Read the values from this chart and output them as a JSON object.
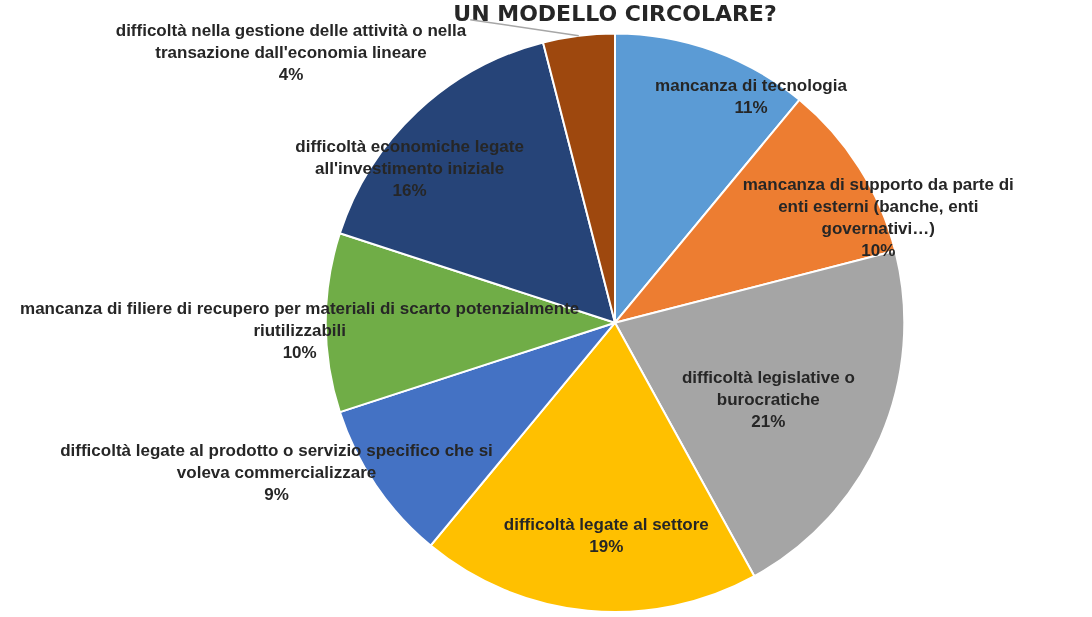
{
  "chart_data": {
    "type": "pie",
    "title": "UN MODELLO CIRCOLARE?",
    "categories": [
      "mancanza di tecnologia",
      "mancanza di supporto da parte di enti esterni (banche, enti governativi…)",
      "difficoltà legislative o burocratiche",
      "difficoltà legate al settore",
      "difficoltà legate al prodotto o servizio specifico che si voleva commercializzare",
      "mancanza di filiere di recupero per materiali di scarto potenzialmente riutilizzabili",
      "difficoltà economiche legate all'investimento iniziale",
      "difficoltà nella gestione delle attività o nella transazione dall'economia lineare"
    ],
    "values": [
      11,
      10,
      21,
      19,
      9,
      10,
      16,
      4
    ],
    "colors": [
      "#5b9bd5",
      "#ed7d31",
      "#a5a5a5",
      "#ffc000",
      "#4472c4",
      "#70ad47",
      "#264478",
      "#9e480e"
    ],
    "value_labels": [
      "11%",
      "10%",
      "21%",
      "19%",
      "9%",
      "10%",
      "16%",
      "4%"
    ],
    "legend": false
  }
}
